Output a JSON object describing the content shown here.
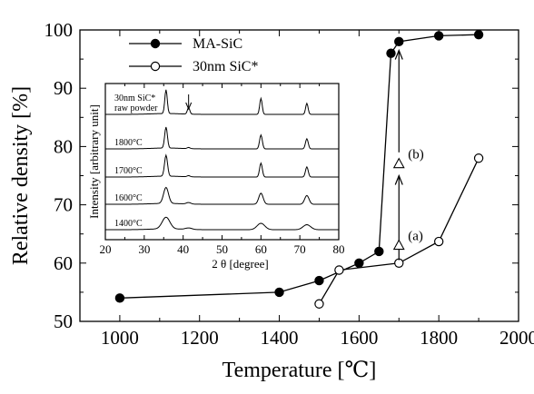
{
  "chart_data": {
    "type": "line",
    "xlabel": "Temperature [℃]",
    "ylabel": "Relative density [%]",
    "xlim": [
      900,
      2000
    ],
    "ylim": [
      50,
      100
    ],
    "xticks": [
      "1000",
      "1200",
      "1400",
      "1600",
      "1800",
      "2000"
    ],
    "yticks": [
      "50",
      "60",
      "70",
      "80",
      "90",
      "100"
    ],
    "legend": {
      "placement": "top-left"
    },
    "series": [
      {
        "name": "MA-SiC",
        "marker": "filled-circle",
        "x": [
          1000,
          1400,
          1500,
          1600,
          1650,
          1680,
          1700,
          1800,
          1900
        ],
        "y": [
          54,
          55,
          57,
          60,
          62,
          96,
          98,
          99,
          99.2
        ]
      },
      {
        "name": "30nm SiC*",
        "marker": "open-circle",
        "x": [
          1500,
          1550,
          1700,
          1800,
          1900
        ],
        "y": [
          53,
          58.8,
          60,
          63.7,
          78
        ]
      }
    ],
    "annotations": [
      {
        "label": "(a)",
        "marker": "open-triangle",
        "x": 1700,
        "y": 63
      },
      {
        "label": "(b)",
        "marker": "open-triangle",
        "x": 1700,
        "y": 77
      }
    ],
    "arrows": [
      {
        "x": 1700,
        "from": 60.5,
        "to": 75
      },
      {
        "x": 1700,
        "from": 79,
        "to": 96.5
      }
    ],
    "inset": {
      "type": "line",
      "xlabel": "2 θ [degree]",
      "ylabel": "Intensity [arbitrary unit]",
      "xlim": [
        20,
        80
      ],
      "xticks": [
        "20",
        "30",
        "40",
        "50",
        "60",
        "70",
        "80"
      ],
      "peaks": [
        35.6,
        41.4,
        60.0,
        71.8
      ],
      "traces": [
        {
          "label": "1400°C",
          "heights": [
            0.4,
            0.05,
            0.22,
            0.17
          ],
          "widths": [
            1.4,
            1.2,
            1.4,
            1.4
          ]
        },
        {
          "label": "1600°C",
          "heights": [
            0.55,
            0.05,
            0.38,
            0.3
          ],
          "widths": [
            0.9,
            0.8,
            0.8,
            0.8
          ]
        },
        {
          "label": "1700°C",
          "heights": [
            0.72,
            0.04,
            0.48,
            0.35
          ],
          "widths": [
            0.55,
            0.5,
            0.5,
            0.5
          ]
        },
        {
          "label": "1800°C",
          "heights": [
            0.72,
            0.04,
            0.48,
            0.35
          ],
          "widths": [
            0.5,
            0.5,
            0.5,
            0.5
          ]
        },
        {
          "label": "30nm SiC*\nraw powder",
          "heights": [
            0.82,
            0.22,
            0.55,
            0.38
          ],
          "widths": [
            0.45,
            0.45,
            0.45,
            0.45
          ]
        }
      ],
      "arrow_at": 41.4
    }
  }
}
